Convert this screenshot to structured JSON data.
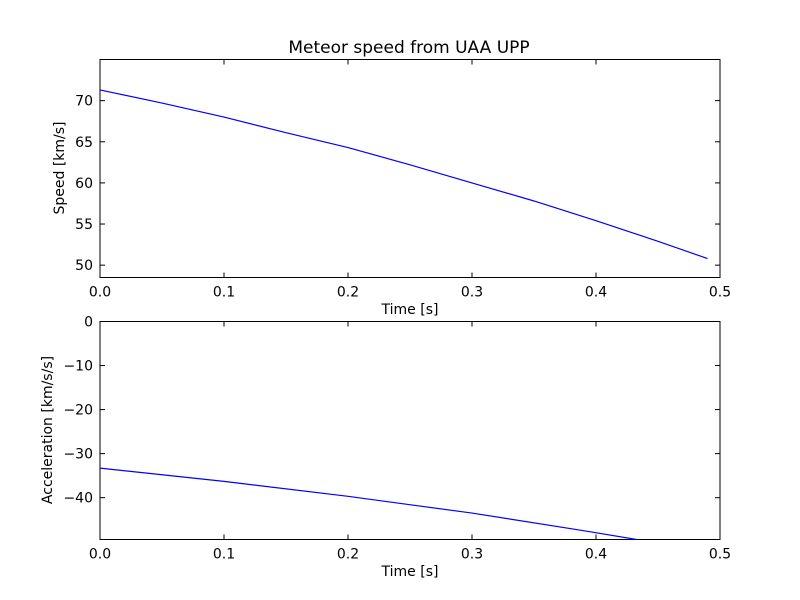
{
  "chart_data": [
    {
      "type": "line",
      "title": "Meteor speed from  UAA UPP",
      "xlabel": "Time [s]",
      "ylabel": "Speed [km/s]",
      "xlim": [
        0.0,
        0.5
      ],
      "ylim": [
        48.5,
        75.0
      ],
      "xticks": [
        "0.0",
        "0.1",
        "0.2",
        "0.3",
        "0.4",
        "0.5"
      ],
      "yticks": [
        "50",
        "55",
        "60",
        "65",
        "70"
      ],
      "xtick_values": [
        0.0,
        0.1,
        0.2,
        0.3,
        0.4,
        0.5
      ],
      "ytick_values": [
        50,
        55,
        60,
        65,
        70
      ],
      "grid": false,
      "series": [
        {
          "color": "#0000ff",
          "x": [
            0.0,
            0.05,
            0.1,
            0.15,
            0.2,
            0.25,
            0.3,
            0.35,
            0.4,
            0.45,
            0.49
          ],
          "y": [
            71.3,
            69.7,
            68.0,
            66.1,
            64.3,
            62.2,
            60.0,
            57.8,
            55.4,
            52.9,
            50.8
          ]
        }
      ]
    },
    {
      "type": "line",
      "title": "",
      "xlabel": "Time [s]",
      "ylabel": "Acceleration [km/s/s]",
      "xlim": [
        0.0,
        0.5
      ],
      "ylim": [
        -49.5,
        0.0
      ],
      "xticks": [
        "0.0",
        "0.1",
        "0.2",
        "0.3",
        "0.4",
        "0.5"
      ],
      "yticks": [
        "0",
        "−10",
        "−20",
        "−30",
        "−40"
      ],
      "xtick_values": [
        0.0,
        0.1,
        0.2,
        0.3,
        0.4,
        0.5
      ],
      "ytick_values": [
        0,
        -10,
        -20,
        -30,
        -40
      ],
      "grid": false,
      "series": [
        {
          "color": "#0000ff",
          "x": [
            0.0,
            0.1,
            0.2,
            0.3,
            0.39,
            0.433
          ],
          "y": [
            -33.3,
            -36.3,
            -39.7,
            -43.5,
            -47.5,
            -49.5
          ]
        }
      ]
    }
  ]
}
